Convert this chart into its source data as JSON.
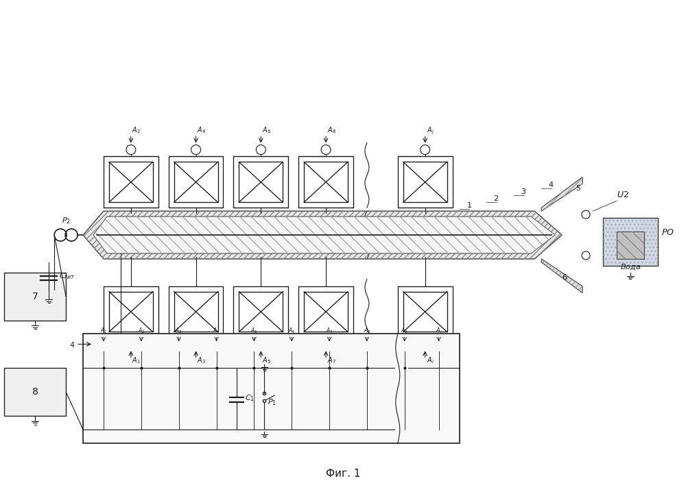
{
  "title": "Фиг. 1",
  "background": "#ffffff",
  "line_color": "#1a1a1a",
  "hatch_color": "#555555",
  "fig_width": 10.0,
  "fig_height": 7.08,
  "dpi": 100
}
